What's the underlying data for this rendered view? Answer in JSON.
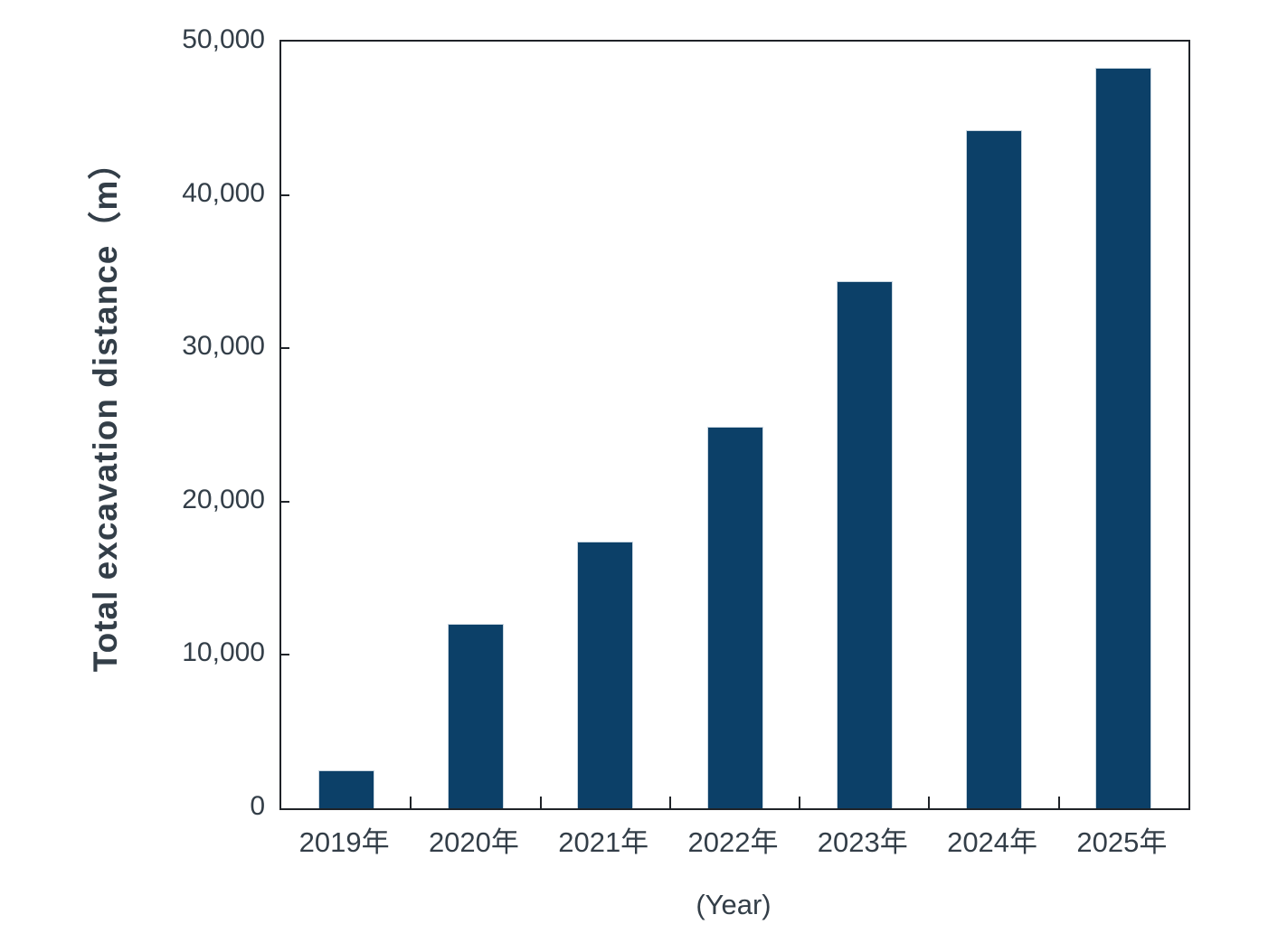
{
  "chart_data": {
    "type": "bar",
    "title": "",
    "categories": [
      "2019年",
      "2020年",
      "2021年",
      "2022年",
      "2023年",
      "2024年",
      "2025年"
    ],
    "values": [
      2500,
      12000,
      17400,
      24900,
      34400,
      44200,
      48300
    ],
    "xlabel": "(Year)",
    "ylabel": "Total excavation distance（m）",
    "ylim": [
      0,
      50000
    ],
    "yticks": [
      {
        "value": 0,
        "label": "0"
      },
      {
        "value": 10000,
        "label": "10,000"
      },
      {
        "value": 20000,
        "label": "20,000"
      },
      {
        "value": 30000,
        "label": "30,000"
      },
      {
        "value": 40000,
        "label": "40,000"
      },
      {
        "value": 50000,
        "label": "50,000"
      }
    ],
    "grid": false,
    "legend": "none",
    "colors": {
      "bar": "#0c4068",
      "bar_edge": "#c9d6e0",
      "text": "#333e48",
      "axis": "#1f2328",
      "background": "#ffffff"
    }
  }
}
